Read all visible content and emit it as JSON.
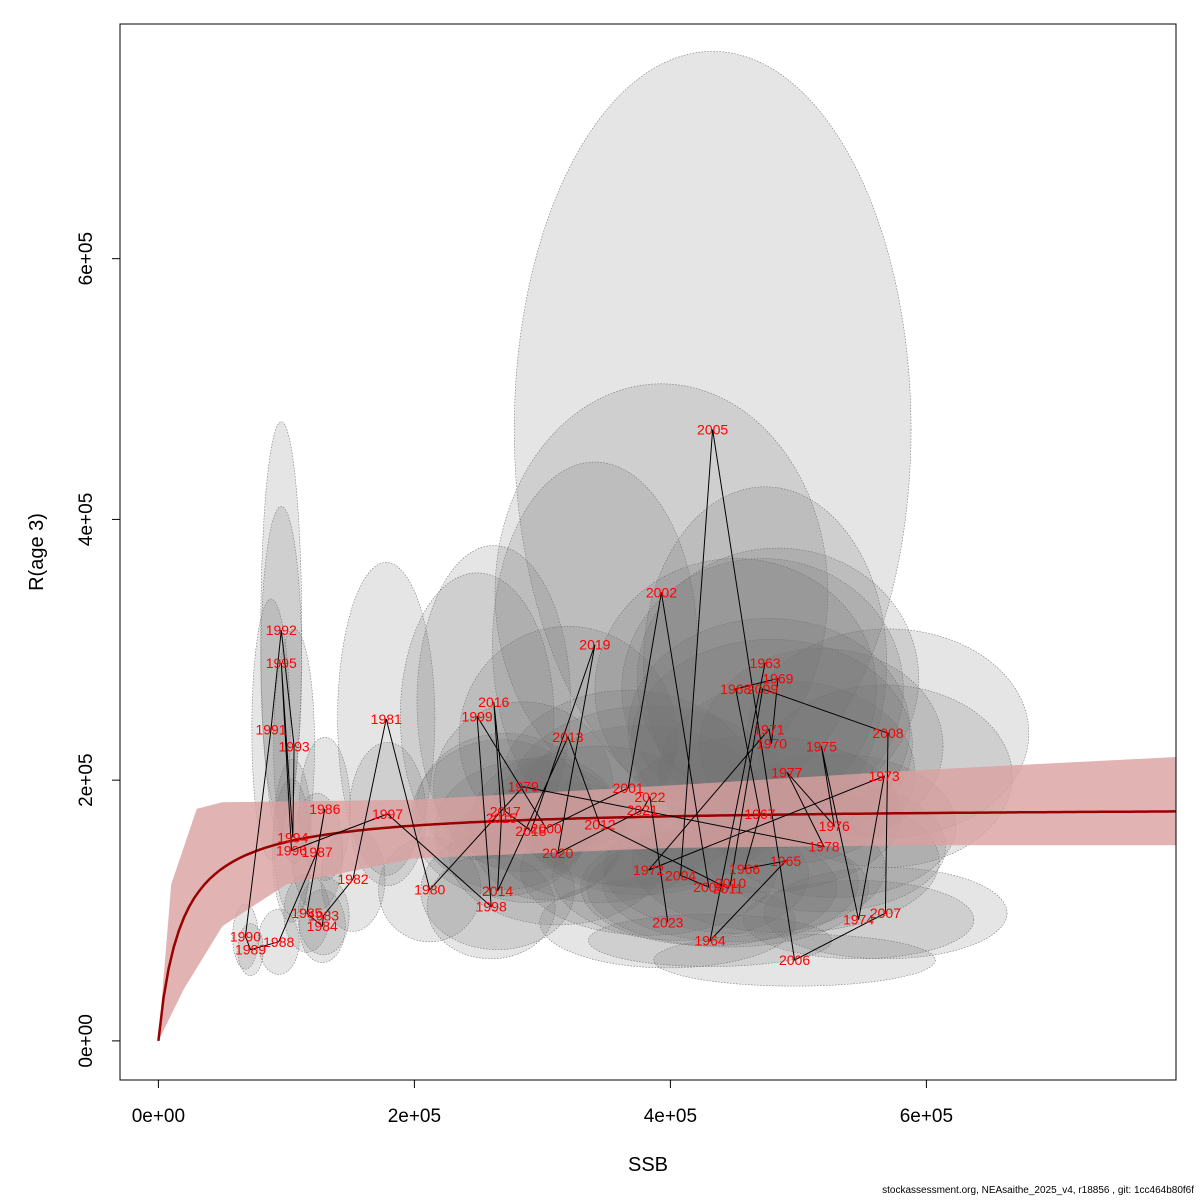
{
  "chart_data": {
    "type": "scatter",
    "xlabel": "SSB",
    "ylabel": "R(age 3)",
    "xlim": [
      -30000,
      795000
    ],
    "ylim": [
      -30000,
      780000
    ],
    "x_ticks": [
      0,
      200000,
      400000,
      600000
    ],
    "x_tick_labels": [
      "0e+00",
      "2e+05",
      "4e+05",
      "6e+05"
    ],
    "y_ticks": [
      0,
      200000,
      400000,
      600000
    ],
    "y_tick_labels": [
      "0e+00",
      "2e+05",
      "4e+05",
      "6e+05"
    ],
    "grid": false,
    "colors": {
      "curve": "#990000",
      "band": "#d9a0a0",
      "label": "#ff0000",
      "ellipse_fill": "rgba(110,110,110,0.18)",
      "path": "#000000"
    },
    "stock_recruitment_curve": {
      "a": 180000,
      "b": 18000,
      "band_lower": [
        [
          0,
          0
        ],
        [
          20000,
          40000
        ],
        [
          50000,
          88000
        ],
        [
          100000,
          120000
        ],
        [
          200000,
          140000
        ],
        [
          400000,
          148000
        ],
        [
          600000,
          150000
        ],
        [
          800000,
          150000
        ]
      ],
      "band_upper": [
        [
          0,
          0
        ],
        [
          10000,
          120000
        ],
        [
          30000,
          178000
        ],
        [
          50000,
          183000
        ],
        [
          200000,
          185000
        ],
        [
          400000,
          196000
        ],
        [
          600000,
          208000
        ],
        [
          800000,
          218000
        ]
      ]
    },
    "points": [
      {
        "year": "1963",
        "x": 474000,
        "y": 290000,
        "rx": 95000,
        "ry": 135000
      },
      {
        "year": "1964",
        "x": 431000,
        "y": 77000,
        "rx": 95000,
        "ry": 20000
      },
      {
        "year": "1965",
        "x": 490000,
        "y": 138000,
        "rx": 120000,
        "ry": 55000
      },
      {
        "year": "1966",
        "x": 458000,
        "y": 132000,
        "rx": 110000,
        "ry": 50000
      },
      {
        "year": "1967",
        "x": 470000,
        "y": 174000,
        "rx": 110000,
        "ry": 60000
      },
      {
        "year": "1968",
        "x": 451000,
        "y": 270000,
        "rx": 110000,
        "ry": 100000
      },
      {
        "year": "1969",
        "x": 484000,
        "y": 278000,
        "rx": 110000,
        "ry": 100000
      },
      {
        "year": "1970",
        "x": 479000,
        "y": 228000,
        "rx": 110000,
        "ry": 80000
      },
      {
        "year": "1971",
        "x": 477000,
        "y": 239000,
        "rx": 110000,
        "ry": 85000
      },
      {
        "year": "1972",
        "x": 383000,
        "y": 131000,
        "rx": 100000,
        "ry": 50000
      },
      {
        "year": "1973",
        "x": 567000,
        "y": 203000,
        "rx": 100000,
        "ry": 70000
      },
      {
        "year": "1974",
        "x": 547000,
        "y": 93000,
        "rx": 90000,
        "ry": 30000
      },
      {
        "year": "1975",
        "x": 518000,
        "y": 226000,
        "rx": 95000,
        "ry": 75000
      },
      {
        "year": "1976",
        "x": 528000,
        "y": 165000,
        "rx": 95000,
        "ry": 55000
      },
      {
        "year": "1977",
        "x": 491000,
        "y": 206000,
        "rx": 100000,
        "ry": 70000
      },
      {
        "year": "1978",
        "x": 520000,
        "y": 149000,
        "rx": 95000,
        "ry": 50000
      },
      {
        "year": "1979",
        "x": 285000,
        "y": 195000,
        "rx": 70000,
        "ry": 65000
      },
      {
        "year": "1980",
        "x": 212000,
        "y": 116000,
        "rx": 40000,
        "ry": 40000
      },
      {
        "year": "1981",
        "x": 178000,
        "y": 247000,
        "rx": 38000,
        "ry": 120000
      },
      {
        "year": "1982",
        "x": 152000,
        "y": 124000,
        "rx": 25000,
        "ry": 40000
      },
      {
        "year": "1983",
        "x": 129000,
        "y": 96000,
        "rx": 20000,
        "ry": 30000
      },
      {
        "year": "1984",
        "x": 128000,
        "y": 88000,
        "rx": 18000,
        "ry": 28000
      },
      {
        "year": "1985",
        "x": 116000,
        "y": 98000,
        "rx": 18000,
        "ry": 30000
      },
      {
        "year": "1986",
        "x": 130000,
        "y": 178000,
        "rx": 20000,
        "ry": 55000
      },
      {
        "year": "1987",
        "x": 124000,
        "y": 145000,
        "rx": 20000,
        "ry": 45000
      },
      {
        "year": "1988",
        "x": 94000,
        "y": 76000,
        "rx": 16000,
        "ry": 25000
      },
      {
        "year": "1989",
        "x": 72000,
        "y": 70000,
        "rx": 10000,
        "ry": 20000
      },
      {
        "year": "1990",
        "x": 68000,
        "y": 80000,
        "rx": 10000,
        "ry": 25000
      },
      {
        "year": "1991",
        "x": 88000,
        "y": 239000,
        "rx": 15000,
        "ry": 100000
      },
      {
        "year": "1992",
        "x": 96000,
        "y": 315000,
        "rx": 16000,
        "ry": 160000
      },
      {
        "year": "1993",
        "x": 106000,
        "y": 226000,
        "rx": 16000,
        "ry": 90000
      },
      {
        "year": "1994",
        "x": 105000,
        "y": 156000,
        "rx": 15000,
        "ry": 60000
      },
      {
        "year": "1995",
        "x": 96000,
        "y": 290000,
        "rx": 16000,
        "ry": 120000
      },
      {
        "year": "1996",
        "x": 104000,
        "y": 146000,
        "rx": 15000,
        "ry": 55000
      },
      {
        "year": "1997",
        "x": 179000,
        "y": 174000,
        "rx": 30000,
        "ry": 55000
      },
      {
        "year": "1998",
        "x": 260000,
        "y": 103000,
        "rx": 50000,
        "ry": 40000
      },
      {
        "year": "1999",
        "x": 249000,
        "y": 249000,
        "rx": 60000,
        "ry": 110000
      },
      {
        "year": "2000",
        "x": 303000,
        "y": 163000,
        "rx": 60000,
        "ry": 55000
      },
      {
        "year": "2001",
        "x": 367000,
        "y": 194000,
        "rx": 100000,
        "ry": 75000
      },
      {
        "year": "2002",
        "x": 393000,
        "y": 344000,
        "rx": 130000,
        "ry": 160000
      },
      {
        "year": "2003",
        "x": 430000,
        "y": 118000,
        "rx": 100000,
        "ry": 45000
      },
      {
        "year": "2004",
        "x": 408000,
        "y": 127000,
        "rx": 100000,
        "ry": 50000
      },
      {
        "year": "2005",
        "x": 433000,
        "y": 469000,
        "rx": 155000,
        "ry": 290000
      },
      {
        "year": "2006",
        "x": 497000,
        "y": 62000,
        "rx": 110000,
        "ry": 20000
      },
      {
        "year": "2007",
        "x": 568000,
        "y": 98000,
        "rx": 95000,
        "ry": 35000
      },
      {
        "year": "2008",
        "x": 570000,
        "y": 236000,
        "rx": 110000,
        "ry": 80000
      },
      {
        "year": "2009",
        "x": 472000,
        "y": 270000,
        "rx": 110000,
        "ry": 100000
      },
      {
        "year": "2010",
        "x": 447000,
        "y": 121000,
        "rx": 100000,
        "ry": 45000
      },
      {
        "year": "2011",
        "x": 445000,
        "y": 117000,
        "rx": 110000,
        "ry": 45000
      },
      {
        "year": "2012",
        "x": 345000,
        "y": 166000,
        "rx": 90000,
        "ry": 60000
      },
      {
        "year": "2013",
        "x": 320000,
        "y": 233000,
        "rx": 85000,
        "ry": 85000
      },
      {
        "year": "2014",
        "x": 265000,
        "y": 115000,
        "rx": 60000,
        "ry": 45000
      },
      {
        "year": "2015",
        "x": 268000,
        "y": 171000,
        "rx": 70000,
        "ry": 60000
      },
      {
        "year": "2016",
        "x": 262000,
        "y": 260000,
        "rx": 60000,
        "ry": 120000
      },
      {
        "year": "2017",
        "x": 271000,
        "y": 176000,
        "rx": 70000,
        "ry": 60000
      },
      {
        "year": "2018",
        "x": 291000,
        "y": 161000,
        "rx": 75000,
        "ry": 55000
      },
      {
        "year": "2019",
        "x": 341000,
        "y": 304000,
        "rx": 80000,
        "ry": 140000
      },
      {
        "year": "2020",
        "x": 312000,
        "y": 144000,
        "rx": 85000,
        "ry": 55000
      },
      {
        "year": "2021",
        "x": 378000,
        "y": 177000,
        "rx": 100000,
        "ry": 65000
      },
      {
        "year": "2022",
        "x": 384000,
        "y": 187000,
        "rx": 110000,
        "ry": 70000
      },
      {
        "year": "2023",
        "x": 398000,
        "y": 91000,
        "rx": 100000,
        "ry": 35000
      }
    ],
    "path_order": [
      "1963",
      "1964",
      "1965",
      "1966",
      "1967",
      "1968",
      "1969",
      "1970",
      "1971",
      "1972",
      "1973",
      "1974",
      "1975",
      "1976",
      "1977",
      "1978",
      "1979",
      "1980",
      "1981",
      "1982",
      "1983",
      "1984",
      "1985",
      "1986",
      "1987",
      "1988",
      "1989",
      "1990",
      "1991",
      "1992",
      "1993",
      "1994",
      "1995",
      "1996",
      "1997",
      "1998",
      "1999",
      "2000",
      "2001",
      "2002",
      "2003",
      "2004",
      "2005",
      "2006",
      "2007",
      "2008",
      "2009",
      "2010",
      "2011",
      "2012",
      "2013",
      "2014",
      "2015",
      "2016",
      "2017",
      "2018",
      "2019",
      "2020",
      "2021",
      "2022",
      "2023"
    ]
  },
  "footer_text": "stockassessment.org, NEAsaithe_2025_v4, r18856 , git: 1cc464b80f6f"
}
